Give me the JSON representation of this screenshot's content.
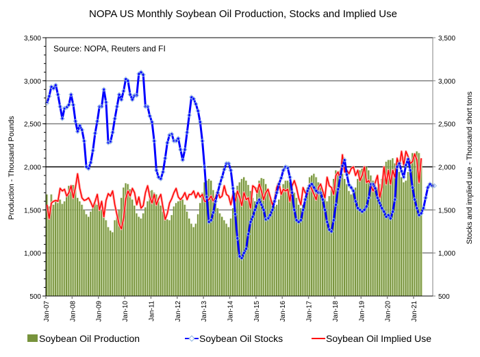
{
  "chart_data": {
    "type": "bar+line",
    "title": "NOPA US Monthly Soybean Oil Production, Stocks and Implied Use",
    "annotation": "Source: NOPA, Reuters and FI",
    "ylabel_left": "Production - Thousand Pounds",
    "ylabel_right": "Stocks and implied use - Thousand short tons",
    "ylim_left": [
      500,
      3500
    ],
    "ylim_right": [
      500,
      3500
    ],
    "yticks_left": [
      "500",
      "1,000",
      "1,500",
      "2,000",
      "2,500",
      "3,000",
      "3,500"
    ],
    "yticks_right": [
      "500",
      "1,000",
      "1,500",
      "2,000",
      "2,500",
      "3,000",
      "3,500"
    ],
    "ytick_values": [
      500,
      1000,
      1500,
      2000,
      2500,
      3000,
      3500
    ],
    "xticks": [
      "Jan-07",
      "Jan-08",
      "Jan-09",
      "Jan-10",
      "Jan-11",
      "Jan-12",
      "Jan-13",
      "Jan-14",
      "Jan-15",
      "Jan-16",
      "Jan-17",
      "Jan-18",
      "Jan-19",
      "Jan-20",
      "Jan-21"
    ],
    "x_start": "Jan-07",
    "x_frequency": "monthly",
    "grid": "horizontal",
    "legend_position": "bottom",
    "colors": {
      "production": "#77933c",
      "production_light": "#c3d69b",
      "stocks": "#0000ff",
      "stocks_marker": "#8eb4e3",
      "implied_use": "#ff0000",
      "grid_dark": "#000000",
      "grid_gray": "#808080"
    },
    "series": [
      {
        "name": "Soybean Oil Production",
        "kind": "bar",
        "values": [
          1680,
          1540,
          1680,
          1560,
          1600,
          1580,
          1620,
          1570,
          1600,
          1660,
          1780,
          1770,
          1790,
          1730,
          1640,
          1600,
          1560,
          1500,
          1450,
          1420,
          1480,
          1520,
          1580,
          1560,
          1580,
          1500,
          1460,
          1380,
          1300,
          1260,
          1240,
          1380,
          1420,
          1500,
          1640,
          1760,
          1810,
          1800,
          1740,
          1620,
          1550,
          1460,
          1420,
          1400,
          1460,
          1530,
          1600,
          1720,
          1730,
          1700,
          1680,
          1600,
          1550,
          1480,
          1440,
          1390,
          1380,
          1440,
          1540,
          1580,
          1600,
          1630,
          1620,
          1560,
          1480,
          1400,
          1340,
          1300,
          1340,
          1450,
          1580,
          1700,
          1820,
          1840,
          1860,
          1840,
          1730,
          1620,
          1520,
          1460,
          1420,
          1380,
          1340,
          1300,
          1400,
          1520,
          1700,
          1780,
          1820,
          1860,
          1880,
          1840,
          1790,
          1720,
          1640,
          1600,
          1760,
          1840,
          1870,
          1860,
          1800,
          1720,
          1640,
          1580,
          1540,
          1560,
          1620,
          1700,
          1800,
          1840,
          1840,
          1820,
          1760,
          1700,
          1640,
          1560,
          1520,
          1560,
          1640,
          1760,
          1880,
          1900,
          1920,
          1880,
          1820,
          1760,
          1700,
          1640,
          1600,
          1660,
          1740,
          1860,
          1960,
          1940,
          1960,
          1920,
          1860,
          1800,
          1720,
          1680,
          1700,
          1760,
          1860,
          1960,
          1980,
          1980,
          2000,
          1960,
          1900,
          1840,
          1780,
          1760,
          1800,
          1860,
          1960,
          2060,
          2080,
          2080,
          2100,
          2040,
          2000,
          1940,
          1880,
          1820,
          1840,
          1940,
          2080,
          2160,
          2140,
          2180,
          2160,
          2080
        ]
      },
      {
        "name": "Soybean Oil Stocks",
        "kind": "line-marker",
        "values": [
          2740,
          2820,
          2930,
          2910,
          2950,
          2840,
          2700,
          2560,
          2680,
          2690,
          2720,
          2840,
          2720,
          2530,
          2410,
          2480,
          2430,
          2300,
          2000,
          1980,
          2050,
          2190,
          2390,
          2530,
          2700,
          2700,
          2900,
          2750,
          2280,
          2290,
          2400,
          2560,
          2700,
          2840,
          2780,
          2880,
          3020,
          3000,
          2840,
          2780,
          2830,
          2830,
          3080,
          3100,
          3070,
          2700,
          2700,
          2590,
          2520,
          2300,
          1960,
          1880,
          1860,
          1940,
          2100,
          2280,
          2370,
          2380,
          2300,
          2300,
          2330,
          2200,
          2080,
          2200,
          2400,
          2600,
          2810,
          2790,
          2730,
          2650,
          2520,
          2300,
          2000,
          1650,
          1360,
          1380,
          1470,
          1600,
          1700,
          1800,
          1880,
          1970,
          2040,
          2040,
          1960,
          1750,
          1450,
          1170,
          960,
          940,
          1000,
          1050,
          1220,
          1360,
          1420,
          1500,
          1580,
          1620,
          1560,
          1500,
          1390,
          1400,
          1440,
          1500,
          1600,
          1700,
          1800,
          1870,
          1960,
          2000,
          1990,
          1880,
          1700,
          1500,
          1380,
          1360,
          1380,
          1500,
          1620,
          1720,
          1780,
          1800,
          1760,
          1720,
          1700,
          1700,
          1620,
          1500,
          1360,
          1270,
          1250,
          1380,
          1560,
          1740,
          1880,
          2010,
          2080,
          1910,
          1790,
          1760,
          1720,
          1600,
          1520,
          1500,
          1480,
          1500,
          1540,
          1640,
          1800,
          1800,
          1750,
          1640,
          1580,
          1520,
          1480,
          1420,
          1440,
          1400,
          1480,
          1620,
          2000,
          2040,
          1950,
          1880,
          2020,
          2090,
          1960,
          1760,
          1620,
          1520,
          1440,
          1460,
          1520,
          1640,
          1760,
          1800,
          1780,
          1780
        ]
      },
      {
        "name": "Soybean Oil Implied Use",
        "kind": "line",
        "values": [
          1560,
          1400,
          1580,
          1600,
          1610,
          1600,
          1750,
          1720,
          1740,
          1660,
          1700,
          1780,
          1640,
          1760,
          1920,
          1750,
          1640,
          1610,
          1620,
          1640,
          1590,
          1530,
          1600,
          1680,
          1500,
          1600,
          1420,
          1610,
          1690,
          1660,
          1720,
          1560,
          1440,
          1330,
          1280,
          1400,
          1630,
          1720,
          1660,
          1750,
          1700,
          1560,
          1650,
          1520,
          1550,
          1700,
          1780,
          1650,
          1580,
          1680,
          1560,
          1630,
          1680,
          1530,
          1390,
          1460,
          1580,
          1630,
          1700,
          1750,
          1650,
          1620,
          1650,
          1700,
          1620,
          1680,
          1680,
          1720,
          1640,
          1700,
          1650,
          1680,
          1600,
          1600,
          1620,
          1660,
          1600,
          1640,
          1720,
          1640,
          1660,
          1780,
          1680,
          1660,
          1560,
          1680,
          1600,
          1720,
          1650,
          1550,
          1700,
          1620,
          1640,
          1520,
          1780,
          1760,
          1700,
          1800,
          1720,
          1620,
          1700,
          1740,
          1650,
          1560,
          1620,
          1760,
          1820,
          1680,
          1740,
          1720,
          1740,
          1600,
          1780,
          1840,
          1760,
          1640,
          1560,
          1760,
          1700,
          1680,
          1800,
          1740,
          1680,
          1620,
          1760,
          1800,
          1720,
          1640,
          1880,
          1780,
          1760,
          1680,
          1900,
          1940,
          1860,
          2140,
          1940,
          1960,
          1920,
          1980,
          2000,
          1900,
          1960,
          1840,
          1900,
          2000,
          1820,
          1840,
          1780,
          1720,
          1820,
          1900,
          1640,
          1760,
          2000,
          1800,
          1960,
          1800,
          1960,
          1880,
          2100,
          2000,
          2180,
          2020,
          2180,
          2120,
          2040,
          2060,
          2150,
          2080,
          1820,
          2100
        ]
      }
    ]
  },
  "legend": {
    "items": [
      {
        "label": "Soybean Oil Production"
      },
      {
        "label": "Soybean Oil Stocks"
      },
      {
        "label": "Soybean Oil Implied Use"
      }
    ]
  }
}
